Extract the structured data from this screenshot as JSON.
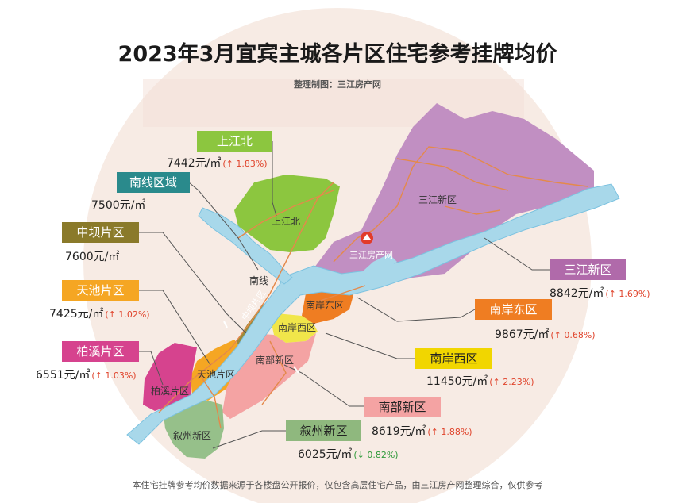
{
  "title": "2023年3月宜宾主城各片区住宅参考挂牌均价",
  "subtitle": "整理制图：三江房产网",
  "footer": "本住宅挂牌参考均价数据来源于各楼盘公开报价，仅包含高层住宅产品，由三江房产网整理综合，仅供参考",
  "watermark": "三江房产网",
  "areas": [
    {
      "id": "shangjiangbei",
      "tag": "上江北",
      "price": "7442元/㎡",
      "change": "(↑ 1.83%)",
      "trend": "up",
      "color": "#8cc63f",
      "map_label": "上江北"
    },
    {
      "id": "nanxian",
      "tag": "南线区域",
      "price": "7500元/㎡",
      "change": "",
      "trend": "",
      "color": "#2a8a8c",
      "map_label": "南线"
    },
    {
      "id": "zhongba",
      "tag": "中坝片区",
      "price": "7600元/㎡",
      "change": "",
      "trend": "",
      "color": "#8a7a2a",
      "map_label": "中坝片区"
    },
    {
      "id": "tianchi",
      "tag": "天池片区",
      "price": "7425元/㎡",
      "change": "(↑ 1.02%)",
      "trend": "up",
      "color": "#f5a623",
      "map_label": "天池片区"
    },
    {
      "id": "baixi",
      "tag": "柏溪片区",
      "price": "6551元/㎡",
      "change": "(↑ 1.03%)",
      "trend": "up",
      "color": "#d6438e",
      "map_label": "柏溪片区"
    },
    {
      "id": "sanjiang",
      "tag": "三江新区",
      "price": "8842元/㎡",
      "change": "(↑ 1.69%)",
      "trend": "up",
      "color": "#b06aaa",
      "map_label": "三江新区"
    },
    {
      "id": "nananeast",
      "tag": "南岸东区",
      "price": "9867元/㎡",
      "change": "(↑ 0.68%)",
      "trend": "up",
      "color": "#ef7d22",
      "map_label": "南岸东区"
    },
    {
      "id": "nananwest",
      "tag": "南岸西区",
      "price": "11450元/㎡",
      "change": "(↑ 2.23%)",
      "trend": "up",
      "color": "#f1d600",
      "map_label": "南岸西区"
    },
    {
      "id": "nanbu",
      "tag": "南部新区",
      "price": "8619元/㎡",
      "change": "(↑ 1.88%)",
      "trend": "up",
      "color": "#f4a3a3",
      "map_label": "南部新区"
    },
    {
      "id": "xuzhou",
      "tag": "叙州新区",
      "price": "6025元/㎡",
      "change": "(↓ 0.82%)",
      "trend": "down",
      "color": "#8fb87e",
      "map_label": "叙州新区"
    }
  ],
  "colors": {
    "river": "#a8d8ea",
    "river_edge": "#5fb3d6",
    "road": "#e4894b",
    "bg_circle": "#f6e6df"
  }
}
